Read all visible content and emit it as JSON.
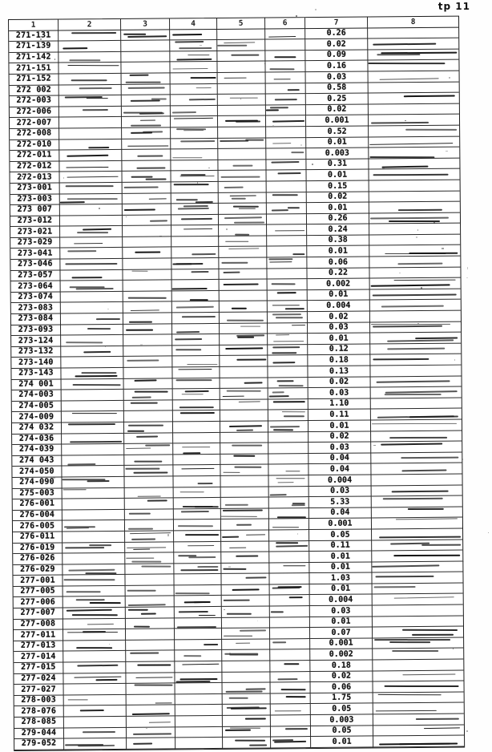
{
  "page": {
    "label": "tp 11"
  },
  "table": {
    "columns": [
      "1",
      "2",
      "3",
      "4",
      "5",
      "6",
      "7",
      "8"
    ],
    "value_column": "7",
    "rows": [
      {
        "code": "271-131",
        "value": "0.26"
      },
      {
        "code": "271-139",
        "value": "0.02"
      },
      {
        "code": "271-142",
        "value": "0.09"
      },
      {
        "code": "271-151",
        "value": "0.16"
      },
      {
        "code": "271-152",
        "value": "0.03"
      },
      {
        "code": "272 002",
        "value": "0.58"
      },
      {
        "code": "272-003",
        "value": "0.25"
      },
      {
        "code": "272-006",
        "value": "0.02"
      },
      {
        "code": "272-007",
        "value": "0.001"
      },
      {
        "code": "272-008",
        "value": "0.52"
      },
      {
        "code": "272-010",
        "value": "0.01"
      },
      {
        "code": "272-011",
        "value": "0.003"
      },
      {
        "code": "272-012",
        "value": "0.31"
      },
      {
        "code": "272-013",
        "value": "0.01"
      },
      {
        "code": "273-001",
        "value": "0.15"
      },
      {
        "code": "273-003",
        "value": "0.02"
      },
      {
        "code": "273 007",
        "value": "0.01"
      },
      {
        "code": "273-012",
        "value": "0.26"
      },
      {
        "code": "273-021",
        "value": "0.24"
      },
      {
        "code": "273-029",
        "value": "0.38"
      },
      {
        "code": "273-041",
        "value": "0.01"
      },
      {
        "code": "273-046",
        "value": "0.06"
      },
      {
        "code": "273-057",
        "value": "0.22"
      },
      {
        "code": "273-064",
        "value": "0.002"
      },
      {
        "code": "273-074",
        "value": "0.01"
      },
      {
        "code": "273-083",
        "value": "0.004"
      },
      {
        "code": "273-084",
        "value": "0.02"
      },
      {
        "code": "273-093",
        "value": "0.03"
      },
      {
        "code": "273-124",
        "value": "0.01"
      },
      {
        "code": "273-132",
        "value": "0.12"
      },
      {
        "code": "273-140",
        "value": "0.18"
      },
      {
        "code": "273-143",
        "value": "0.13"
      },
      {
        "code": "274 001",
        "value": "0.02"
      },
      {
        "code": "274-003",
        "value": "0.03"
      },
      {
        "code": "274-005",
        "value": "1.10"
      },
      {
        "code": "274-009",
        "value": "0.11"
      },
      {
        "code": "274 032",
        "value": "0.01"
      },
      {
        "code": "274-036",
        "value": "0.02"
      },
      {
        "code": "274-039",
        "value": "0.03"
      },
      {
        "code": "274 043",
        "value": "0.04"
      },
      {
        "code": "274-050",
        "value": "0.04"
      },
      {
        "code": "274-090",
        "value": "0.004"
      },
      {
        "code": "275-003",
        "value": "0.03"
      },
      {
        "code": "276-001",
        "value": "5.33"
      },
      {
        "code": "276-004",
        "value": "0.04"
      },
      {
        "code": "276-005",
        "value": "0.001"
      },
      {
        "code": "276-011",
        "value": "0.05"
      },
      {
        "code": "276-019",
        "value": "0.11"
      },
      {
        "code": "276-026",
        "value": "0.01"
      },
      {
        "code": "276-029",
        "value": "0.01"
      },
      {
        "code": "277-001",
        "value": "1.03"
      },
      {
        "code": "277-005",
        "value": "0.01"
      },
      {
        "code": "277-006",
        "value": "0.004"
      },
      {
        "code": "277-007",
        "value": "0.03"
      },
      {
        "code": "277-008",
        "value": "0.01"
      },
      {
        "code": "277-011",
        "value": "0.07"
      },
      {
        "code": "277-013",
        "value": "0.001"
      },
      {
        "code": "277-014",
        "value": "0.002"
      },
      {
        "code": "277-015",
        "value": "0.18"
      },
      {
        "code": "277-024",
        "value": "0.02"
      },
      {
        "code": "277-027",
        "value": "0.06"
      },
      {
        "code": "278-003",
        "value": "1.75"
      },
      {
        "code": "278-076",
        "value": "0.05"
      },
      {
        "code": "278-085",
        "value": "0.003"
      },
      {
        "code": "279-044",
        "value": "0.05"
      },
      {
        "code": "279-052",
        "value": "0.01"
      }
    ]
  }
}
